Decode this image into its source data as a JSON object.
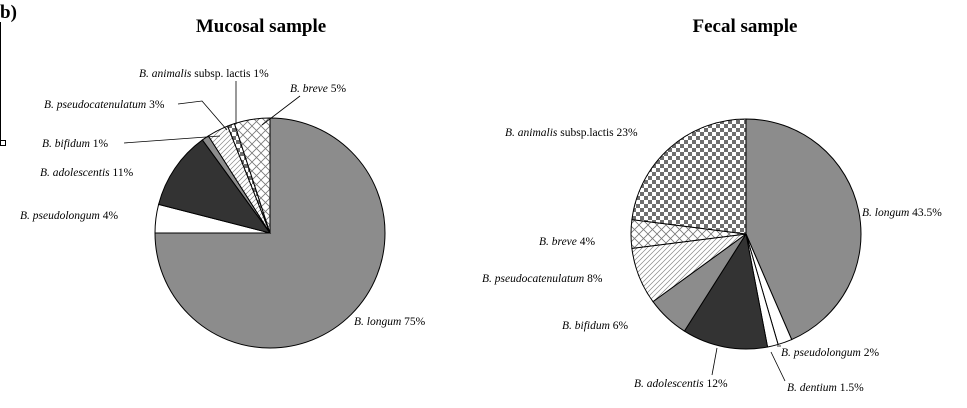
{
  "panel_label": "b)",
  "chart_data": [
    {
      "type": "pie",
      "title": "Mucosal sample",
      "slices": [
        {
          "genus": "B.",
          "species": "longum",
          "suffix": "",
          "value": 75,
          "pct": "75%",
          "fill": "#8c8c8c",
          "pattern": "solid"
        },
        {
          "genus": "B.",
          "species": "pseudolongum",
          "suffix": "",
          "value": 4,
          "pct": "4%",
          "fill": "#ffffff",
          "pattern": "solid"
        },
        {
          "genus": "B.",
          "species": "adolescentis",
          "suffix": "",
          "value": 11,
          "pct": "11%",
          "fill": "#333333",
          "pattern": "solid"
        },
        {
          "genus": "B.",
          "species": "bifidum",
          "suffix": "",
          "value": 1,
          "pct": "1%",
          "fill": "#8c8c8c",
          "pattern": "solid"
        },
        {
          "genus": "B.",
          "species": "pseudocatenulatum",
          "suffix": "",
          "value": 3,
          "pct": "3%",
          "fill": "#ffffff",
          "pattern": "diag"
        },
        {
          "genus": "B.",
          "species": "animalis",
          "suffix": " subsp. lactis",
          "value": 1,
          "pct": "1%",
          "fill": "#ffffff",
          "pattern": "check"
        },
        {
          "genus": "B.",
          "species": "breve",
          "suffix": "",
          "value": 5,
          "pct": "5%",
          "fill": "#ffffff",
          "pattern": "cross"
        }
      ]
    },
    {
      "type": "pie",
      "title": "Fecal  sample",
      "slices": [
        {
          "genus": "B.",
          "species": "longum",
          "suffix": "",
          "value": 43.5,
          "pct": "43.5%",
          "fill": "#8c8c8c",
          "pattern": "solid"
        },
        {
          "genus": "B.",
          "species": "pseudolongum",
          "suffix": "",
          "value": 2,
          "pct": "2%",
          "fill": "#ffffff",
          "pattern": "solid"
        },
        {
          "genus": "B.",
          "species": "dentium",
          "suffix": "",
          "value": 1.5,
          "pct": "1.5%",
          "fill": "#ffffff",
          "pattern": "solid"
        },
        {
          "genus": "B.",
          "species": "adolescentis",
          "suffix": "",
          "value": 12,
          "pct": "12%",
          "fill": "#333333",
          "pattern": "solid"
        },
        {
          "genus": "B.",
          "species": "bifidum",
          "suffix": "",
          "value": 6,
          "pct": "6%",
          "fill": "#8c8c8c",
          "pattern": "solid"
        },
        {
          "genus": "B.",
          "species": "pseudocatenulatum",
          "suffix": "",
          "value": 8,
          "pct": "8%",
          "fill": "#ffffff",
          "pattern": "diag"
        },
        {
          "genus": "B.",
          "species": "breve",
          "suffix": "",
          "value": 4,
          "pct": "4%",
          "fill": "#ffffff",
          "pattern": "cross"
        },
        {
          "genus": "B.",
          "species": "animalis",
          "suffix": " subsp.lactis",
          "value": 23,
          "pct": "23%",
          "fill": "#ffffff",
          "pattern": "check"
        }
      ]
    }
  ]
}
